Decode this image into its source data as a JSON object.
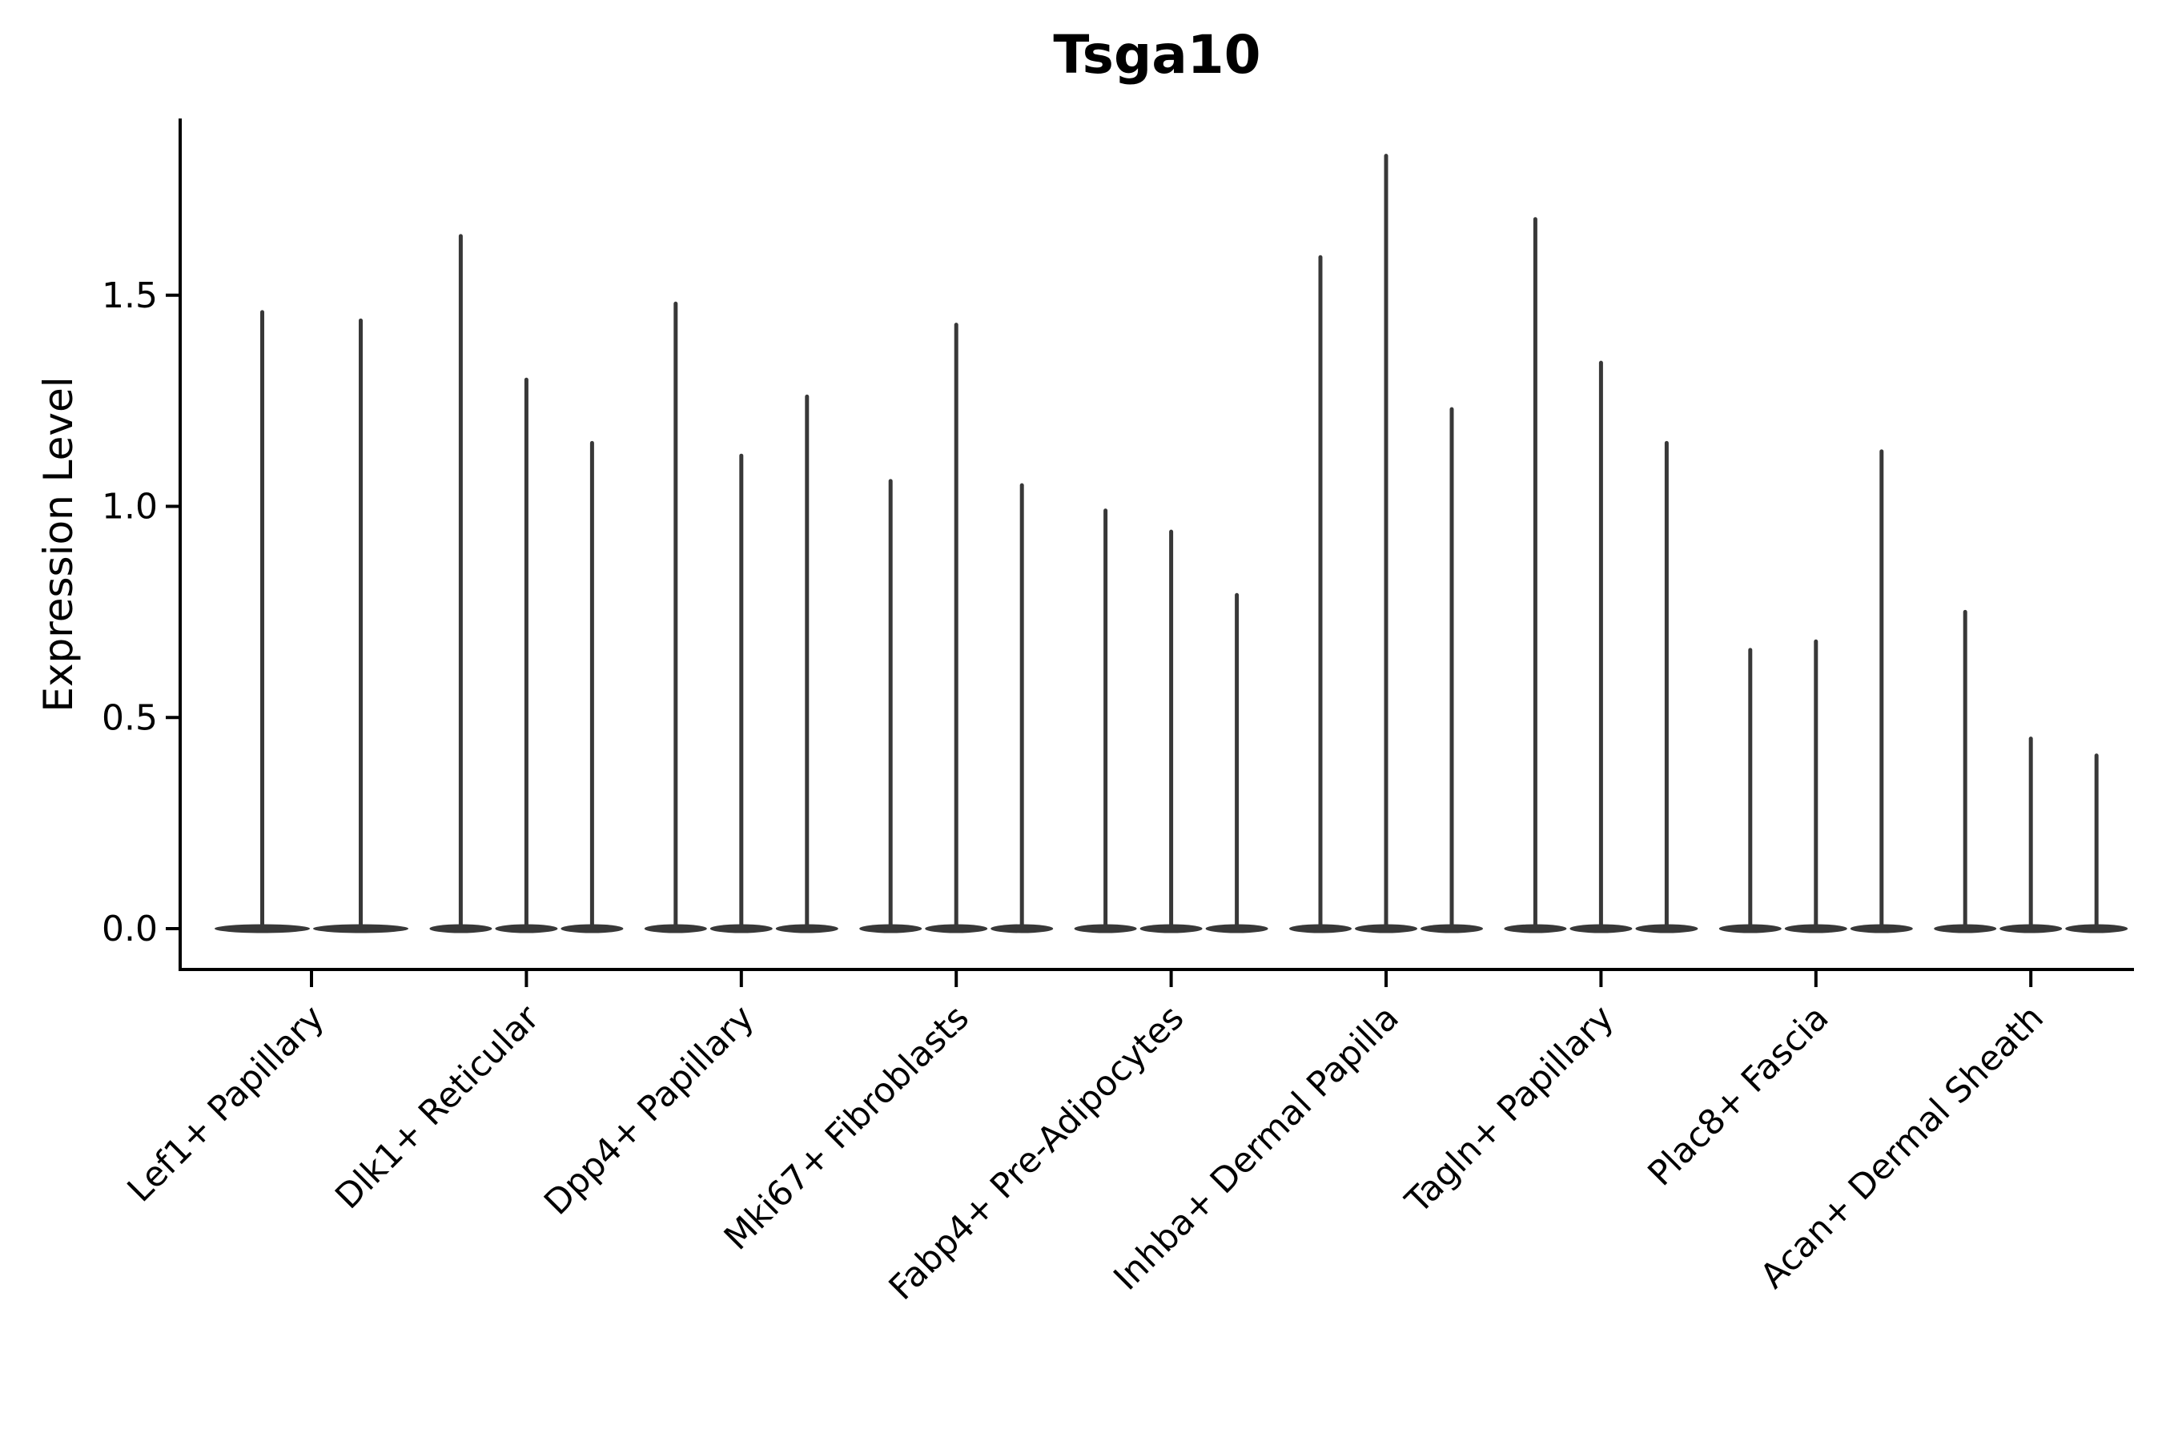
{
  "chart_data": {
    "type": "violin",
    "title": "Tsga10",
    "ylabel": "Expression Level",
    "xlabel": "",
    "ytick_values": [
      0.0,
      0.5,
      1.0,
      1.5
    ],
    "ytick_labels": [
      "0.0",
      "0.5",
      "1.0",
      "1.5"
    ],
    "ylim": [
      -0.1,
      1.92
    ],
    "grid": false,
    "legend": false,
    "x_label_rotation_deg": 45,
    "categories": [
      "Lef1+ Papillary",
      "Dlk1+ Reticular",
      "Dpp4+ Papillary",
      "Mki67+ Fibroblasts",
      "Fabp4+ Pre-Adipocytes",
      "Inhba+ Dermal Papilla",
      "Tagln+ Papillary",
      "Plac8+ Fascia",
      "Acan+ Dermal Sheath"
    ],
    "groups": [
      {
        "category": "Lef1+ Papillary",
        "violin_max": [
          1.46,
          1.44
        ]
      },
      {
        "category": "Dlk1+ Reticular",
        "violin_max": [
          1.64,
          1.3,
          1.15
        ]
      },
      {
        "category": "Dpp4+ Papillary",
        "violin_max": [
          1.48,
          1.12,
          1.26
        ]
      },
      {
        "category": "Mki67+ Fibroblasts",
        "violin_max": [
          1.06,
          1.43,
          1.05
        ]
      },
      {
        "category": "Fabp4+ Pre-Adipocytes",
        "violin_max": [
          0.99,
          0.94,
          0.79
        ]
      },
      {
        "category": "Inhba+ Dermal Papilla",
        "violin_max": [
          1.59,
          1.83,
          1.23
        ]
      },
      {
        "category": "Tagln+ Papillary",
        "violin_max": [
          1.68,
          1.34,
          1.15
        ]
      },
      {
        "category": "Plac8+ Fascia",
        "violin_max": [
          0.66,
          0.68,
          1.13
        ]
      },
      {
        "category": "Acan+ Dermal Sheath",
        "violin_max": [
          0.75,
          0.45,
          0.41
        ]
      }
    ],
    "violin_min": 0.0,
    "colors": {
      "ink": "#383838",
      "axis": "#000000",
      "text": "#000000",
      "background": "#ffffff"
    }
  }
}
